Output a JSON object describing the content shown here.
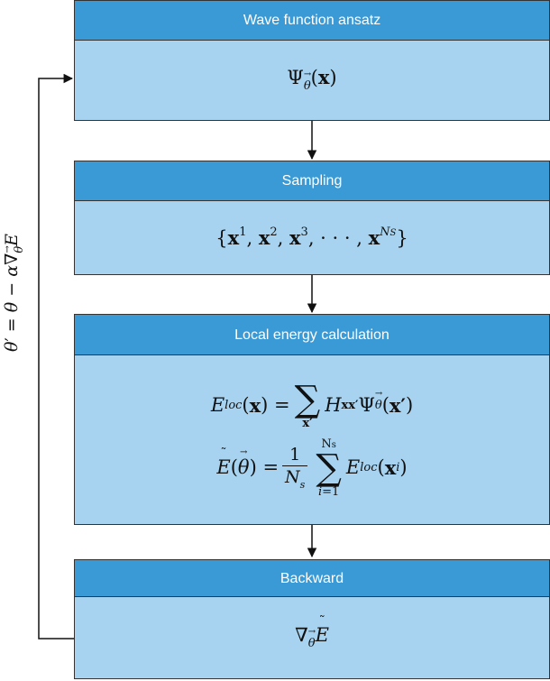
{
  "colors": {
    "header_fill": "#3a9ad6",
    "body_fill": "#a7d3f0",
    "border": "#333333",
    "header_text": "#ffffff"
  },
  "blocks": [
    {
      "title": "Wave function ansatz",
      "body_math": "Ψ_θ(x)"
    },
    {
      "title": "Sampling",
      "body_math": "{x^1, x^2, x^3, ··· , x^{N_S}}"
    },
    {
      "title": "Local energy calculation",
      "body_math": [
        "E_loc(x) = Σ_{x'} H_{xx'} Ψ_θ(x')",
        "Ẽ(θ) = 1/N_s Σ_{i=1}^{N_s} E_loc(x^i)"
      ]
    },
    {
      "title": "Backward",
      "body_math": "∇_θ Ẽ"
    }
  ],
  "feedback_label": "θ' = θ − α∇_θ Ẽ"
}
